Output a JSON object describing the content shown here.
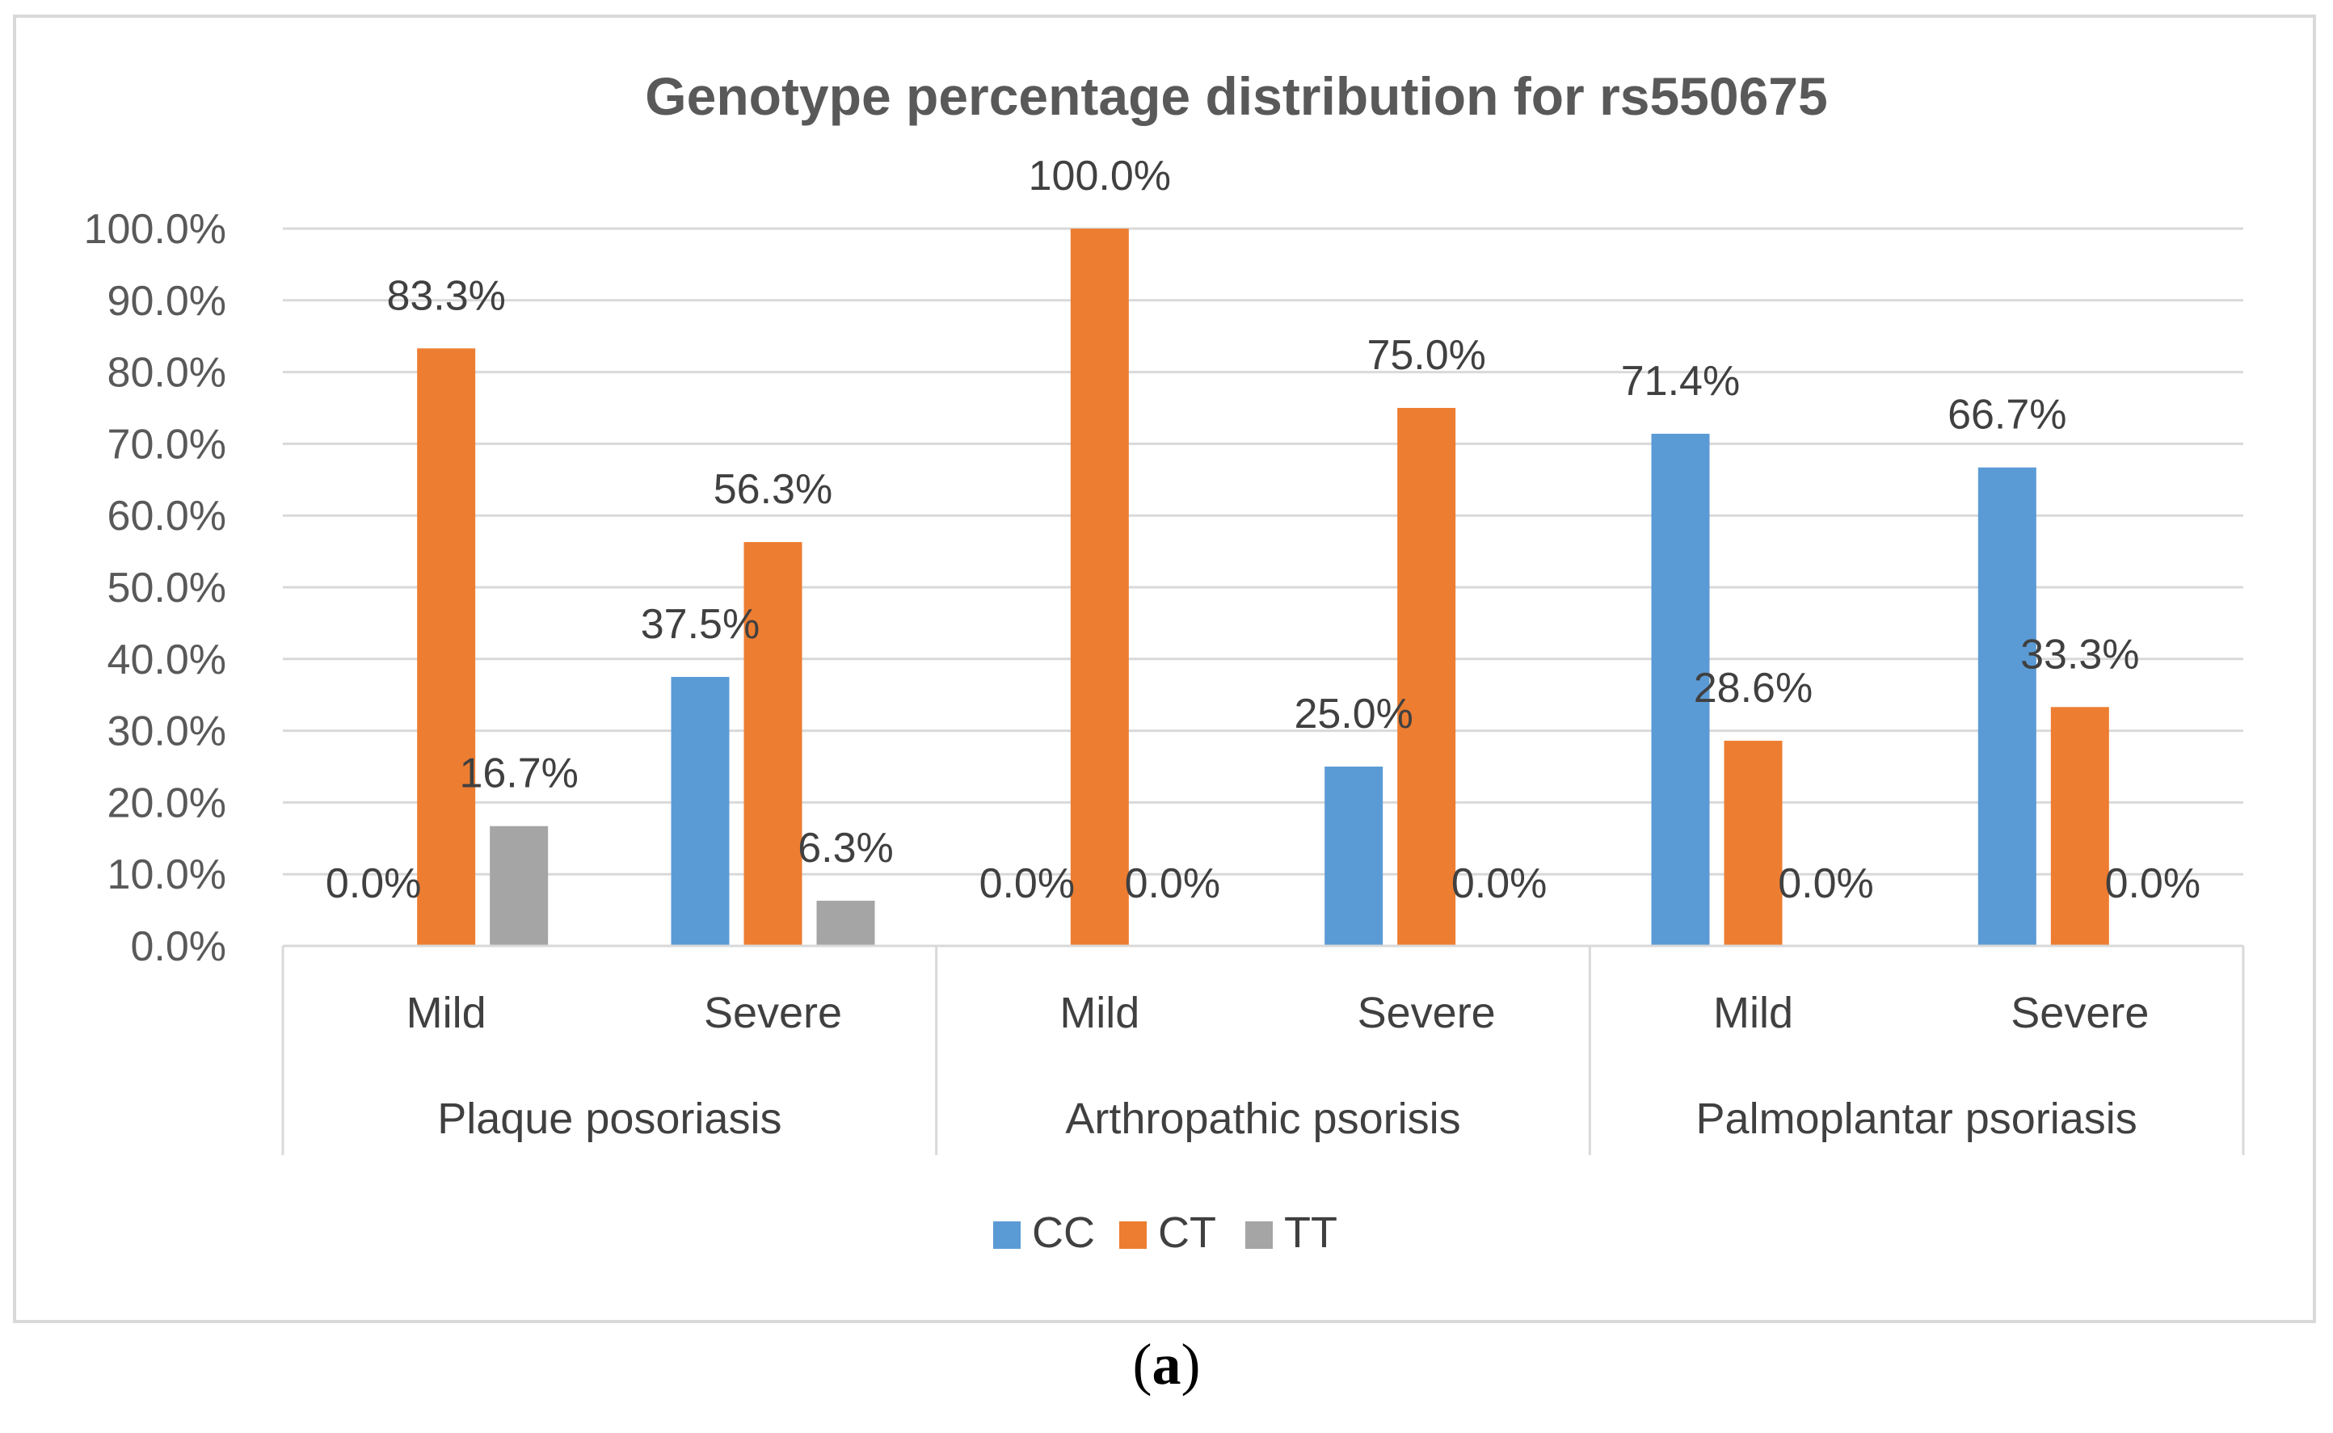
{
  "chart_data": {
    "type": "bar",
    "title": "Genotype percentage distribution  for rs550675",
    "groups": [
      {
        "name": "Plaque posoriasis",
        "categories": [
          "Mild",
          "Severe"
        ]
      },
      {
        "name": "Arthropathic psorisis",
        "categories": [
          "Mild",
          "Severe"
        ]
      },
      {
        "name": "Palmoplantar psoriasis",
        "categories": [
          "Mild",
          "Severe"
        ]
      }
    ],
    "series": [
      {
        "name": "CC",
        "color": "#5b9bd5",
        "values": [
          0.0,
          37.5,
          0.0,
          25.0,
          71.4,
          66.7
        ],
        "labels": [
          "0.0%",
          "37.5%",
          "0.0%",
          "25.0%",
          "71.4%",
          "66.7%"
        ]
      },
      {
        "name": "CT",
        "color": "#ed7d31",
        "values": [
          83.3,
          56.3,
          100.0,
          75.0,
          28.6,
          33.3
        ],
        "labels": [
          "83.3%",
          "56.3%",
          "100.0%",
          "75.0%",
          "28.6%",
          "33.3%"
        ]
      },
      {
        "name": "TT",
        "color": "#a5a5a5",
        "values": [
          16.7,
          6.3,
          0.0,
          0.0,
          0.0,
          0.0
        ],
        "labels": [
          "16.7%",
          "6.3%",
          "0.0%",
          "0.0%",
          "0.0%",
          "0.0%"
        ]
      }
    ],
    "y_ticks": [
      "0.0%",
      "10.0%",
      "20.0%",
      "30.0%",
      "40.0%",
      "50.0%",
      "60.0%",
      "70.0%",
      "80.0%",
      "90.0%",
      "100.0%"
    ],
    "ylim": [
      0,
      100
    ],
    "grid": true,
    "legend_position": "bottom",
    "xlabel": "",
    "ylabel": ""
  },
  "caption": {
    "open": "(",
    "letter": "a",
    "close": ")"
  }
}
